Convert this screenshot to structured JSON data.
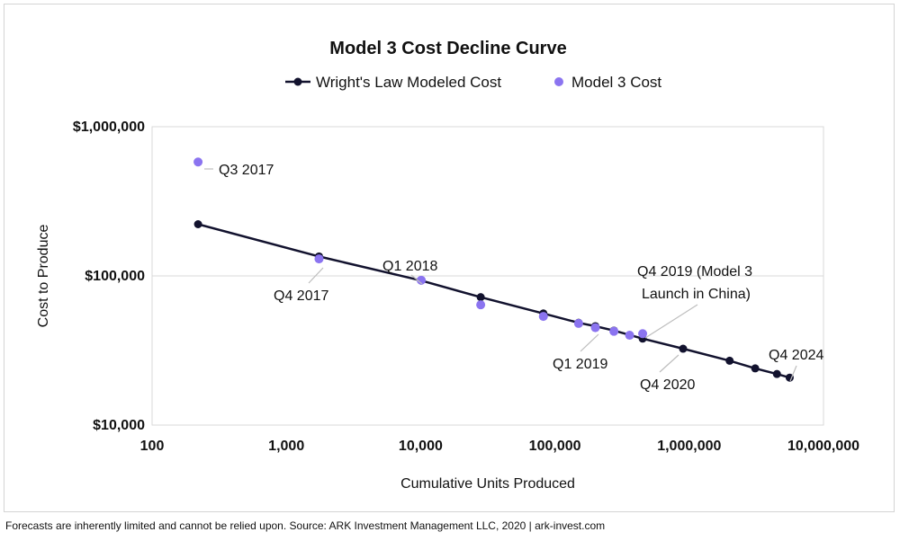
{
  "chart_data": {
    "type": "scatter",
    "title": "Model 3 Cost Decline Curve",
    "xlabel": "Cumulative Units Produced",
    "ylabel": "Cost to Produce",
    "x_scale": "log",
    "y_scale": "log",
    "xlim": [
      100,
      10000000
    ],
    "ylim": [
      10000,
      1000000
    ],
    "x_ticks": [
      {
        "value": 100,
        "label": "100"
      },
      {
        "value": 1000,
        "label": "1,000"
      },
      {
        "value": 10000,
        "label": "10,000"
      },
      {
        "value": 100000,
        "label": "100,000"
      },
      {
        "value": 1000000,
        "label": "1,000,000"
      },
      {
        "value": 10000000,
        "label": "10,000,000"
      }
    ],
    "y_ticks": [
      {
        "value": 10000,
        "label": "$10,000"
      },
      {
        "value": 100000,
        "label": "$100,000"
      },
      {
        "value": 1000000,
        "label": "$1,000,000"
      }
    ],
    "grid": "horizontal",
    "legend_position": "top",
    "series": [
      {
        "name": "Wright's Law Modeled Cost",
        "style": "line-with-markers",
        "color": "#12122e",
        "points": [
          {
            "x": 220,
            "y": 222000
          },
          {
            "x": 1750,
            "y": 135000
          },
          {
            "x": 10100,
            "y": 93000
          },
          {
            "x": 28000,
            "y": 72000
          },
          {
            "x": 82000,
            "y": 56000
          },
          {
            "x": 150000,
            "y": 48500
          },
          {
            "x": 200000,
            "y": 46000
          },
          {
            "x": 275000,
            "y": 43000
          },
          {
            "x": 450000,
            "y": 38000
          },
          {
            "x": 900000,
            "y": 32500
          },
          {
            "x": 2000000,
            "y": 27000
          },
          {
            "x": 3100000,
            "y": 24000
          },
          {
            "x": 4500000,
            "y": 22000
          },
          {
            "x": 5600000,
            "y": 20800
          }
        ]
      },
      {
        "name": "Model 3 Cost",
        "style": "markers",
        "color": "#8b74f0",
        "points": [
          {
            "x": 220,
            "y": 580000
          },
          {
            "x": 1750,
            "y": 130000
          },
          {
            "x": 10100,
            "y": 93500
          },
          {
            "x": 28000,
            "y": 64000
          },
          {
            "x": 82000,
            "y": 53500
          },
          {
            "x": 150000,
            "y": 48000
          },
          {
            "x": 200000,
            "y": 45000
          },
          {
            "x": 275000,
            "y": 42500
          },
          {
            "x": 360000,
            "y": 40000
          },
          {
            "x": 450000,
            "y": 41000
          }
        ]
      }
    ],
    "annotations": [
      {
        "text": "Q3 2017"
      },
      {
        "text": "Q4 2017"
      },
      {
        "text": "Q1 2018"
      },
      {
        "text": "Q1 2019"
      },
      {
        "text": "Q4 2019 (Model 3"
      },
      {
        "text": "Launch in China)"
      },
      {
        "text": "Q4 2020"
      },
      {
        "text": "Q4 2024"
      }
    ]
  },
  "footer": "Forecasts are inherently limited and cannot be relied upon. Source: ARK Investment Management LLC, 2020  |  ark-invest.com"
}
